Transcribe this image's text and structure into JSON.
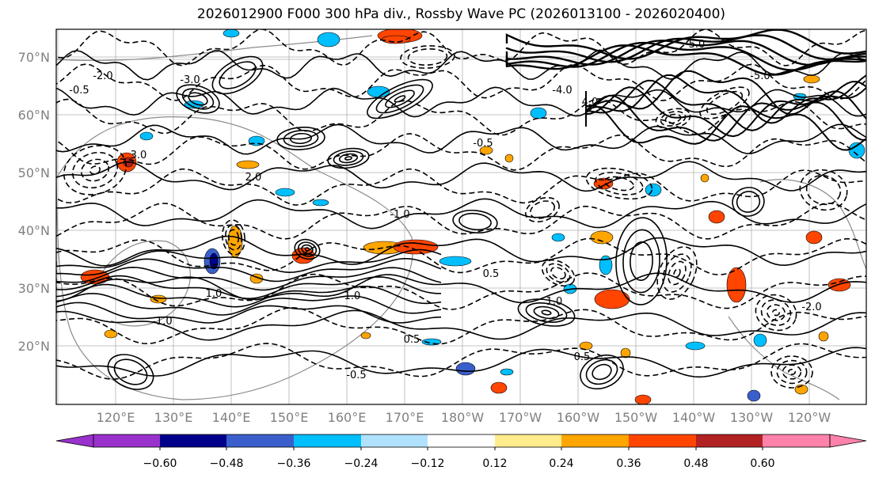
{
  "title": "2026012900 F000 300 hPa div., Rossby Wave PC (2026013100 - 2026020400)",
  "map": {
    "lat_labels": [
      "70°N",
      "60°N",
      "50°N",
      "40°N",
      "30°N",
      "20°N"
    ],
    "lon_labels": [
      "120°E",
      "130°E",
      "140°E",
      "150°E",
      "160°E",
      "170°E",
      "180°W",
      "170°W",
      "160°W",
      "150°W",
      "140°W",
      "130°W",
      "120°W"
    ],
    "contour_labels": [
      "-0.5",
      "0.5",
      "-1.0",
      "1.0",
      "-2.0",
      "2.0",
      "-3.0",
      "3.0",
      "-5.0",
      "5.0",
      "-4.0",
      "4.0",
      "0.5",
      "-0.5",
      "-1.0",
      "1.0",
      "-0.5",
      "0.5",
      "-2.0",
      "1.0"
    ]
  },
  "colorbar": {
    "colors": [
      "#9932cc",
      "#00008b",
      "#3a5fcd",
      "#00bfff",
      "#b0e2ff",
      "#ffffff",
      "#ffec8b",
      "#ffa500",
      "#ff4500",
      "#b22222",
      "#ff82ab"
    ],
    "tick_labels": [
      "−0.60",
      "−0.48",
      "−0.36",
      "−0.24",
      "−0.12",
      "0.12",
      "0.24",
      "0.36",
      "0.48",
      "0.60"
    ]
  }
}
